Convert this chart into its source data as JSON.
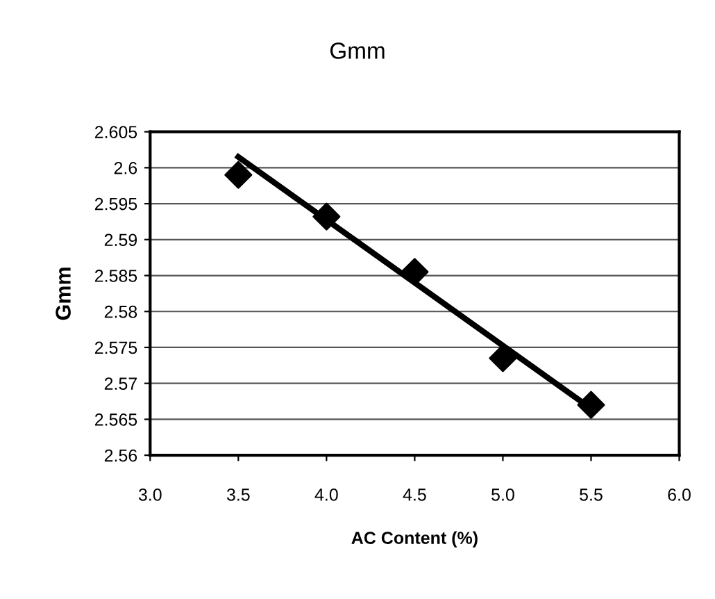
{
  "chart_data": {
    "type": "scatter",
    "title": "Gmm",
    "xlabel": "AC Content (%)",
    "ylabel": "Gmm",
    "xlim": [
      3.0,
      6.0
    ],
    "ylim": [
      2.56,
      2.605
    ],
    "xticks": [
      {
        "value": 3.0,
        "label": "3.0"
      },
      3.5,
      {
        "value": 4.0,
        "label": "4.0"
      },
      4.5,
      {
        "value": 5.0,
        "label": "5.0"
      },
      5.5,
      {
        "value": 6.0,
        "label": "6.0"
      }
    ],
    "yticks": [
      {
        "value": 2.56,
        "label": "2.56"
      },
      2.565,
      {
        "value": 2.57,
        "label": "2.57"
      },
      2.575,
      {
        "value": 2.58,
        "label": "2.58"
      },
      2.585,
      {
        "value": 2.59,
        "label": "2.59"
      },
      2.595,
      {
        "value": 2.6,
        "label": "2.6"
      },
      2.605
    ],
    "grid": "y",
    "marker": "diamond",
    "series": [
      {
        "color": "#000000",
        "x": [
          3.5,
          4.0,
          4.5,
          5.0,
          5.5
        ],
        "values": [
          2.599,
          2.5932,
          2.5855,
          2.5735,
          2.567
        ]
      },
      {
        "type": "line",
        "color": "#000000",
        "x": [
          3.5,
          5.5
        ],
        "values": [
          2.6015,
          2.5665
        ],
        "marker": "none",
        "line_style": "solid"
      }
    ]
  }
}
